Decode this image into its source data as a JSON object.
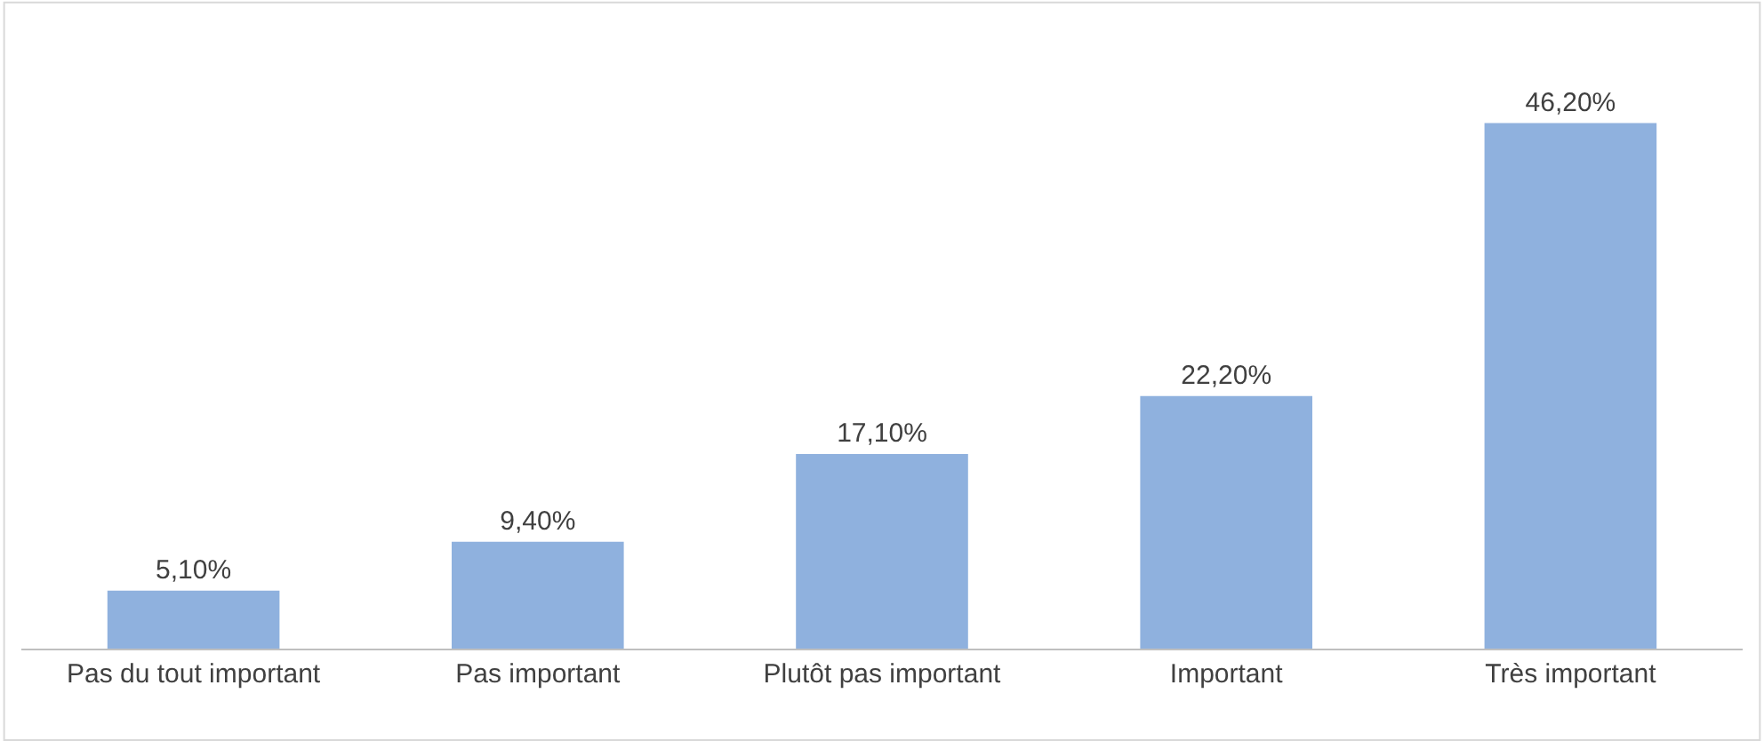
{
  "chart_data": {
    "type": "bar",
    "categories": [
      "Pas du tout important",
      "Pas important",
      "Plutôt pas important",
      "Important",
      "Très important"
    ],
    "values": [
      5.1,
      9.4,
      17.1,
      22.2,
      46.2
    ],
    "value_labels": [
      "5,10%",
      "9,40%",
      "17,10%",
      "22,20%",
      "46,20%"
    ],
    "color": "#8fb1de"
  }
}
